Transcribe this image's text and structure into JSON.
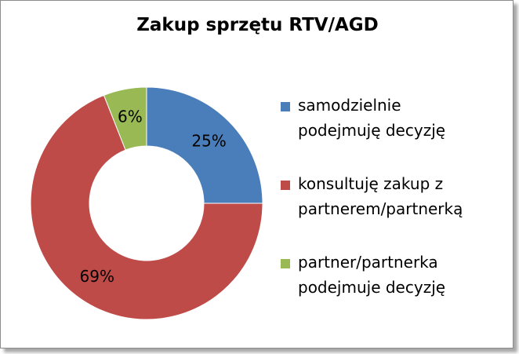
{
  "chart_data": {
    "type": "pie",
    "donut": true,
    "title": "Zakup sprzętu RTV/AGD",
    "categories": [
      "samodzielnie podejmuję decyzję",
      "konsultuję zakup z partnerem/partnerką",
      "partner/partnerka podejmuje decyzję"
    ],
    "values": [
      25,
      69,
      6
    ],
    "data_labels": [
      "25%",
      "69%",
      "6%"
    ],
    "colors": [
      "#4a7ebb",
      "#be4b48",
      "#98b954"
    ],
    "legend_position": "right",
    "legend_lines": [
      [
        "samodzielnie",
        "podejmuję decyzję"
      ],
      [
        "konsultuję zakup z",
        "partnerem/partnerką"
      ],
      [
        "partner/partnerka",
        "podejmuje decyzję"
      ]
    ]
  }
}
